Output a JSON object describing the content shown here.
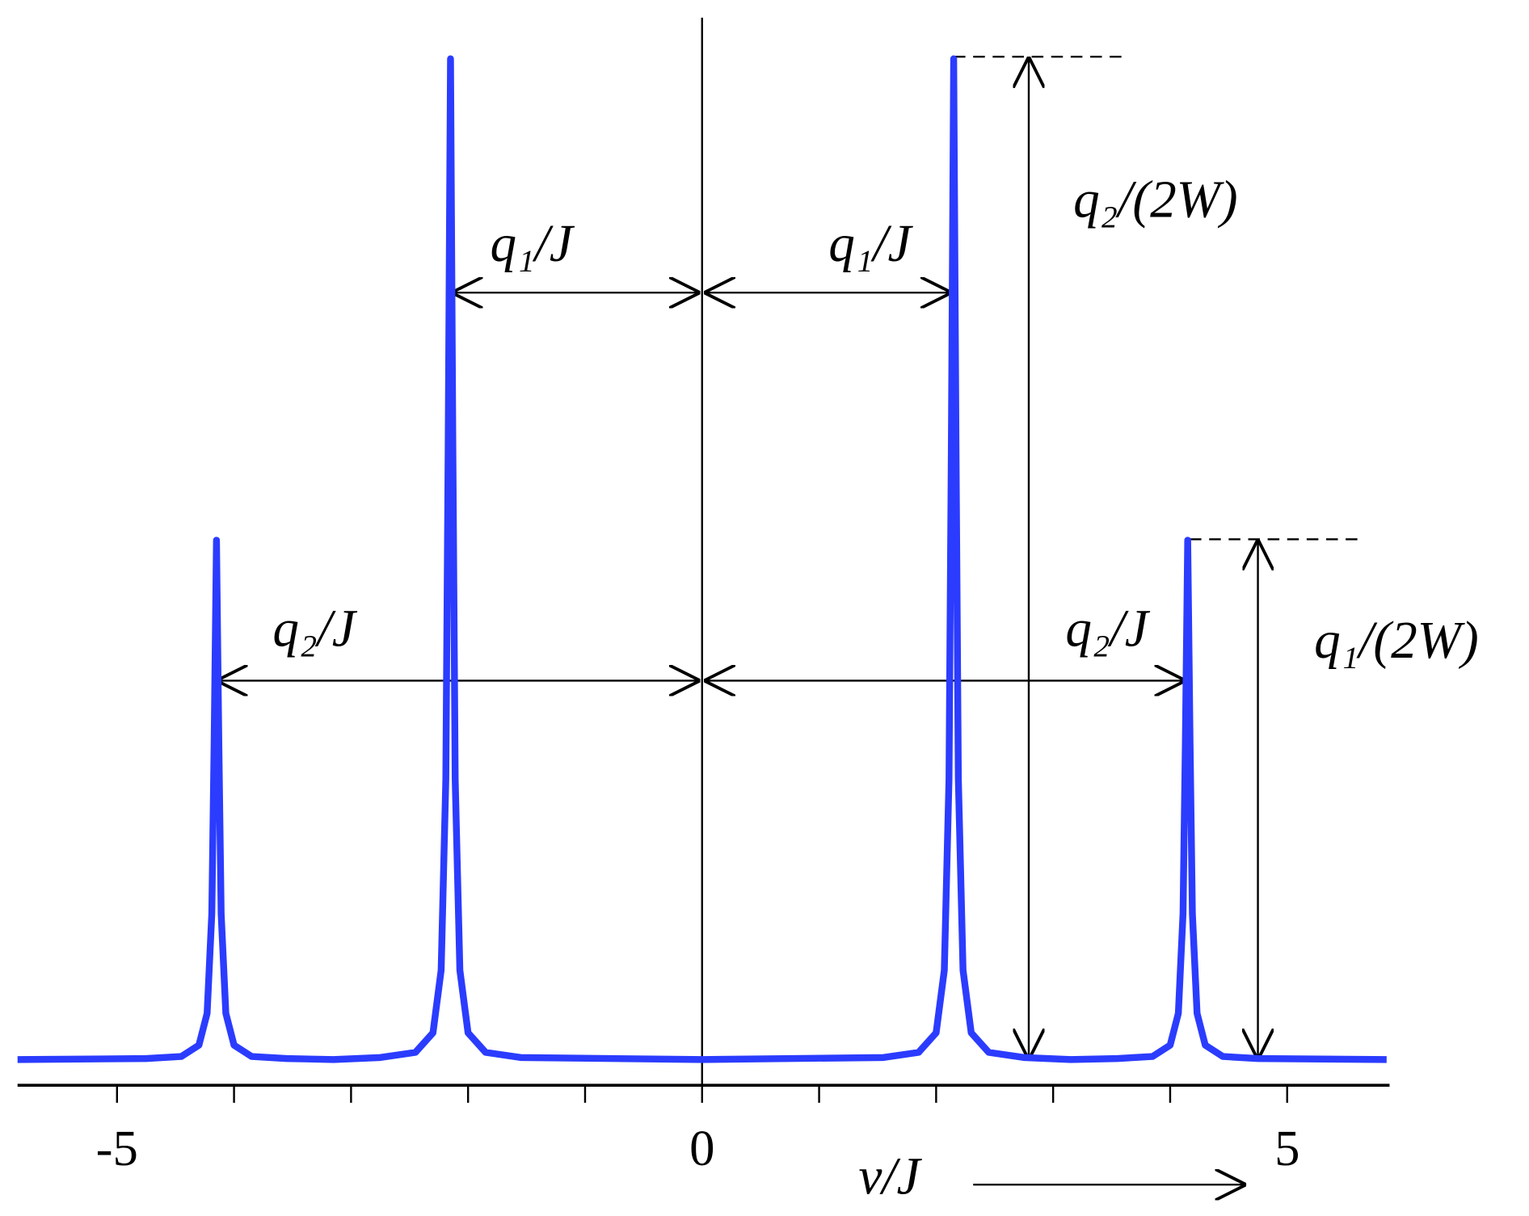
{
  "chart_data": {
    "type": "line",
    "x": [
      -5.85,
      -4.75,
      -4.45,
      -4.3,
      -4.23,
      -4.19,
      -4.17,
      -4.15,
      -4.13,
      -4.11,
      -4.07,
      -4.0,
      -3.85,
      -3.55,
      -3.15,
      -2.75,
      -2.45,
      -2.3,
      -2.23,
      -2.19,
      -2.17,
      -2.15,
      -2.13,
      -2.11,
      -2.07,
      -2.0,
      -1.85,
      -1.55,
      0,
      1.55,
      1.85,
      2.0,
      2.07,
      2.11,
      2.13,
      2.15,
      2.17,
      2.19,
      2.23,
      2.3,
      2.45,
      2.75,
      3.15,
      3.55,
      3.85,
      4.0,
      4.07,
      4.11,
      4.13,
      4.15,
      4.17,
      4.19,
      4.23,
      4.3,
      4.45,
      4.75,
      5.85
    ],
    "series": [
      {
        "color": "#2b3cff",
        "values": [
          0.025,
          0.026,
          0.028,
          0.039,
          0.07,
          0.167,
          0.334,
          0.531,
          0.334,
          0.167,
          0.07,
          0.039,
          0.028,
          0.026,
          0.025,
          0.027,
          0.032,
          0.051,
          0.112,
          0.298,
          0.62,
          1.0,
          0.62,
          0.298,
          0.112,
          0.051,
          0.032,
          0.027,
          0.025,
          0.027,
          0.032,
          0.051,
          0.112,
          0.298,
          0.62,
          1.0,
          0.62,
          0.298,
          0.112,
          0.051,
          0.032,
          0.027,
          0.025,
          0.026,
          0.028,
          0.039,
          0.07,
          0.167,
          0.334,
          0.531,
          0.334,
          0.167,
          0.07,
          0.039,
          0.028,
          0.026,
          0.025
        ]
      }
    ],
    "xlim": [
      -5.85,
      5.875
    ],
    "ylim": [
      0,
      1.04
    ],
    "xticks": [
      -5,
      {
        "value": -4,
        "label": null
      },
      {
        "value": -3,
        "label": null
      },
      {
        "value": -2,
        "label": null
      },
      {
        "value": -1,
        "label": null
      },
      0,
      {
        "value": 1,
        "label": null
      },
      {
        "value": 2,
        "label": null
      },
      {
        "value": 3,
        "label": null
      },
      {
        "value": 4,
        "label": null
      },
      5
    ],
    "x_label": "ν/J",
    "annotations": [
      "q₁/J",
      "q₁/J",
      "q₂/J",
      "q₂/J",
      "q₂/(2W)",
      "q₁/(2W)"
    ]
  }
}
